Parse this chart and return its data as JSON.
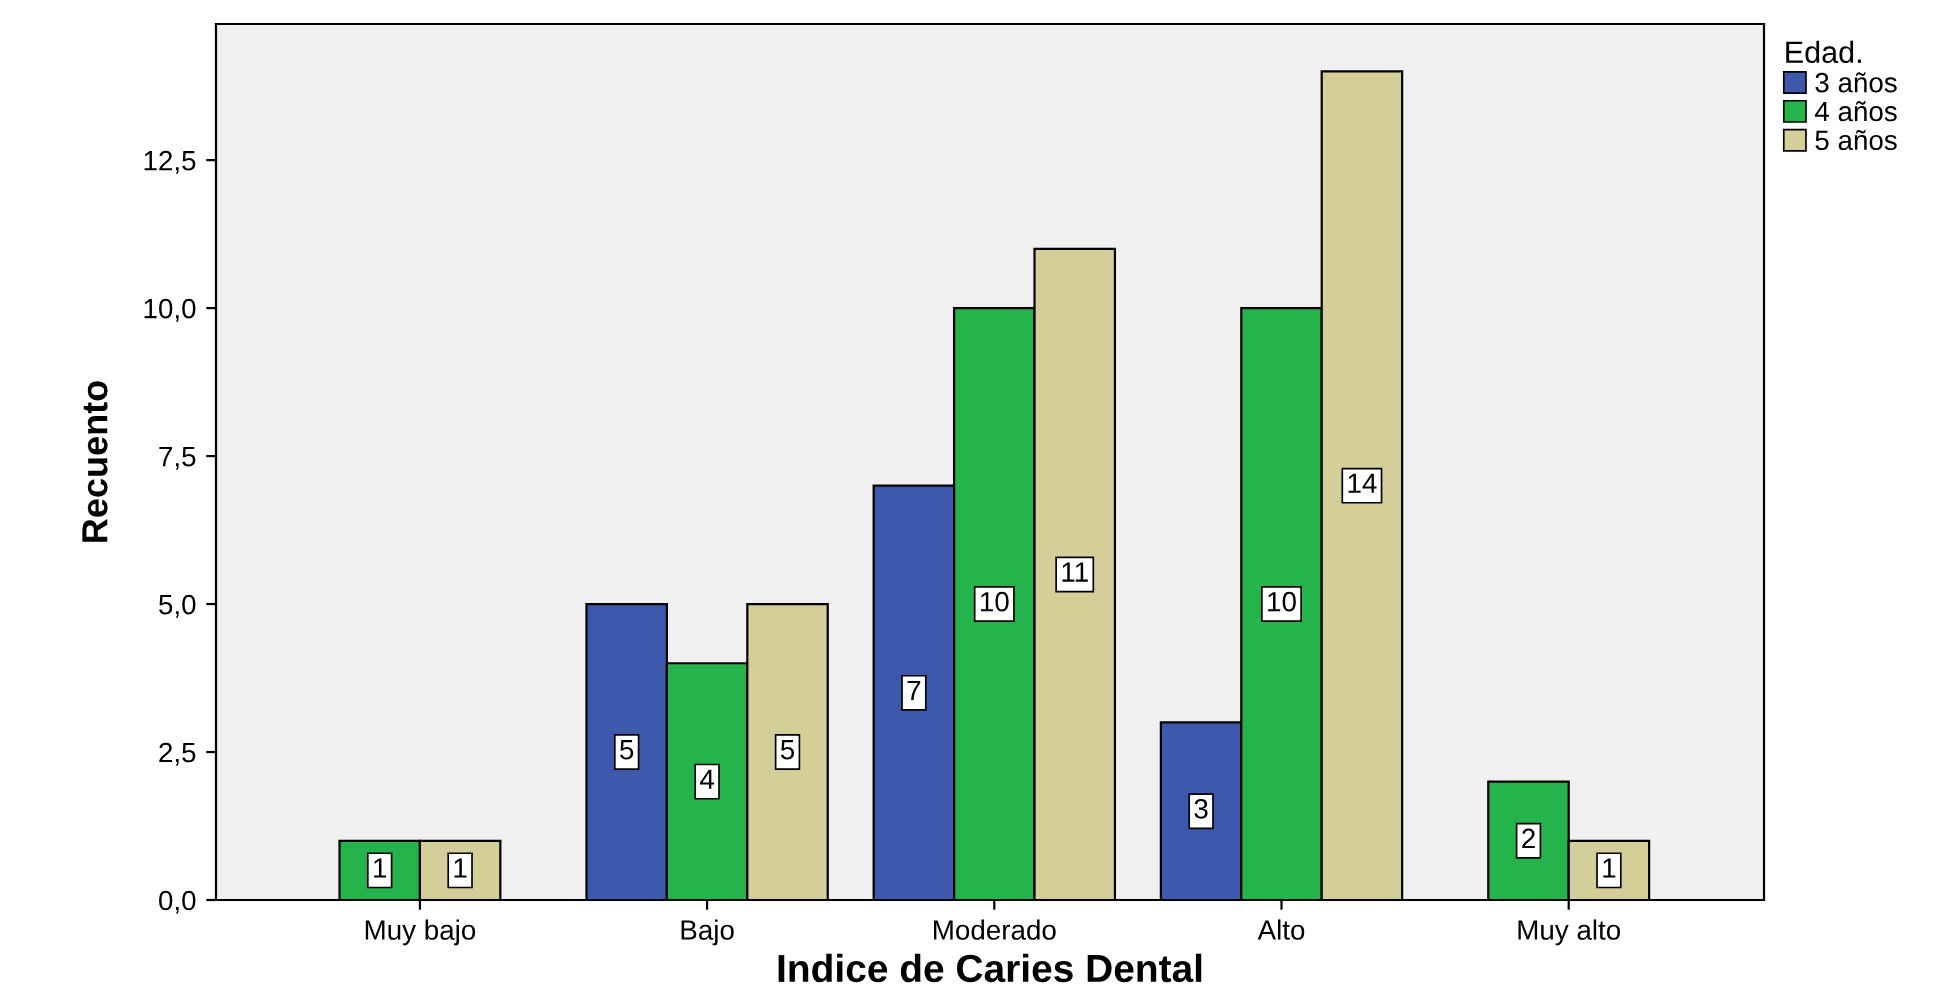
{
  "chart_data": {
    "type": "bar",
    "xlabel": "Indice de Caries Dental",
    "ylabel": "Recuento",
    "legend_title": "Edad.",
    "categories": [
      "Muy bajo",
      "Bajo",
      "Moderado",
      "Alto",
      "Muy alto"
    ],
    "series": [
      {
        "name": "3 años",
        "color": "#3e58ac",
        "values": [
          null,
          5,
          7,
          3,
          null
        ]
      },
      {
        "name": "4 años",
        "color": "#25b34b",
        "values": [
          1,
          4,
          10,
          10,
          2
        ]
      },
      {
        "name": "5 años",
        "color": "#d4cf98",
        "values": [
          1,
          5,
          11,
          14,
          1
        ]
      }
    ],
    "ylim": [
      0,
      14.8
    ],
    "yticks": [
      {
        "value": 0,
        "label": "0,0"
      },
      {
        "value": 2.5,
        "label": "2,5"
      },
      {
        "value": 5,
        "label": "5,0"
      },
      {
        "value": 7.5,
        "label": "7,5"
      },
      {
        "value": 10,
        "label": "10,0"
      },
      {
        "value": 12.5,
        "label": "12,5"
      }
    ],
    "data_labels": true,
    "grid": false,
    "legend": "top right"
  }
}
